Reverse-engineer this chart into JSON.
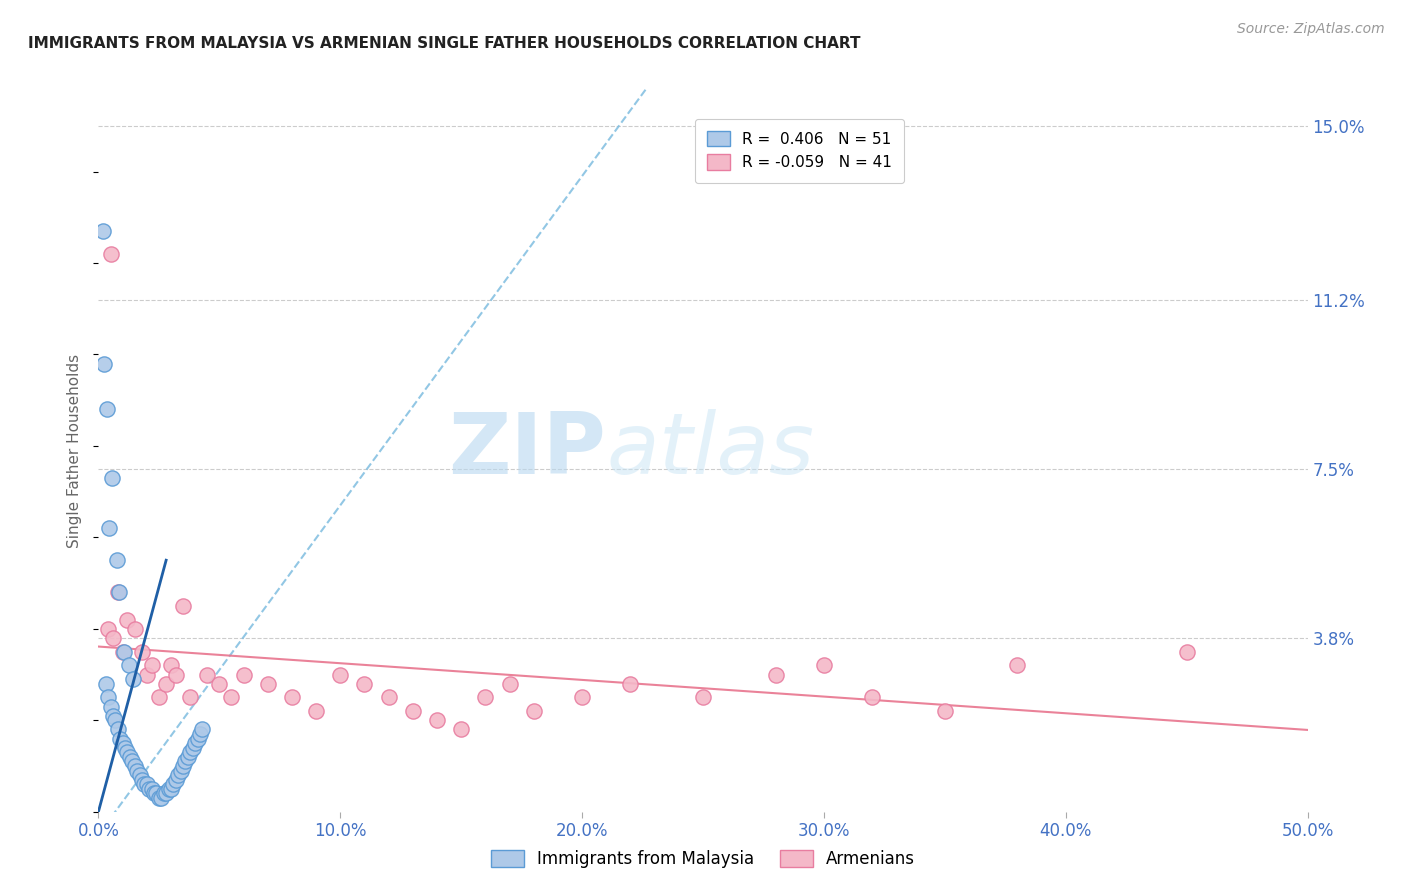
{
  "title": "IMMIGRANTS FROM MALAYSIA VS ARMENIAN SINGLE FATHER HOUSEHOLDS CORRELATION CHART",
  "source": "Source: ZipAtlas.com",
  "ylabel": "Single Father Households",
  "x_tick_labels": [
    "0.0%",
    "10.0%",
    "20.0%",
    "30.0%",
    "40.0%",
    "50.0%"
  ],
  "x_tick_values": [
    0.0,
    10.0,
    20.0,
    30.0,
    40.0,
    50.0
  ],
  "y_tick_labels": [
    "3.8%",
    "7.5%",
    "11.2%",
    "15.0%"
  ],
  "y_tick_values": [
    3.8,
    7.5,
    11.2,
    15.0
  ],
  "xlim": [
    0.0,
    50.0
  ],
  "ylim": [
    0.0,
    15.8
  ],
  "legend_label_blue": "Immigrants from Malaysia",
  "legend_label_pink": "Armenians",
  "R_blue": 0.406,
  "N_blue": 51,
  "R_pink": -0.059,
  "N_pink": 41,
  "blue_fill": "#aec9e8",
  "blue_edge": "#5b9bd5",
  "pink_fill": "#f4b8c8",
  "pink_edge": "#e87da0",
  "watermark_color": "#cde5f5",
  "title_color": "#222222",
  "axis_tick_color": "#4472c4",
  "ylabel_color": "#666666",
  "grid_color": "#cccccc",
  "blue_trend_color": "#7fbde0",
  "pink_trend_color": "#e8758e",
  "blue_line_color": "#1f5fa6",
  "blue_scatter_x": [
    0.3,
    0.4,
    0.5,
    0.6,
    0.7,
    0.8,
    0.9,
    1.0,
    1.1,
    1.2,
    1.3,
    1.4,
    1.5,
    1.6,
    1.7,
    1.8,
    1.9,
    2.0,
    2.1,
    2.2,
    2.3,
    2.4,
    2.5,
    2.6,
    2.7,
    2.8,
    2.9,
    3.0,
    3.1,
    3.2,
    3.3,
    3.4,
    3.5,
    3.6,
    3.7,
    3.8,
    3.9,
    4.0,
    4.1,
    4.2,
    4.3,
    0.2,
    0.35,
    0.55,
    0.75,
    0.85,
    1.05,
    1.25,
    1.45,
    0.25,
    0.45
  ],
  "blue_scatter_y": [
    2.8,
    2.5,
    2.3,
    2.1,
    2.0,
    1.8,
    1.6,
    1.5,
    1.4,
    1.3,
    1.2,
    1.1,
    1.0,
    0.9,
    0.8,
    0.7,
    0.6,
    0.6,
    0.5,
    0.5,
    0.4,
    0.4,
    0.3,
    0.3,
    0.4,
    0.4,
    0.5,
    0.5,
    0.6,
    0.7,
    0.8,
    0.9,
    1.0,
    1.1,
    1.2,
    1.3,
    1.4,
    1.5,
    1.6,
    1.7,
    1.8,
    12.7,
    8.8,
    7.3,
    5.5,
    4.8,
    3.5,
    3.2,
    2.9,
    9.8,
    6.2
  ],
  "pink_scatter_x": [
    0.4,
    0.6,
    0.8,
    1.0,
    1.2,
    1.5,
    1.8,
    2.0,
    2.2,
    2.5,
    2.8,
    3.0,
    3.2,
    3.5,
    3.8,
    4.5,
    5.0,
    5.5,
    6.0,
    7.0,
    8.0,
    9.0,
    10.0,
    11.0,
    12.0,
    13.0,
    14.0,
    15.0,
    16.0,
    17.0,
    18.0,
    20.0,
    22.0,
    25.0,
    28.0,
    30.0,
    32.0,
    35.0,
    38.0,
    45.0,
    0.5
  ],
  "pink_scatter_y": [
    4.0,
    3.8,
    4.8,
    3.5,
    4.2,
    4.0,
    3.5,
    3.0,
    3.2,
    2.5,
    2.8,
    3.2,
    3.0,
    4.5,
    2.5,
    3.0,
    2.8,
    2.5,
    3.0,
    2.8,
    2.5,
    2.2,
    3.0,
    2.8,
    2.5,
    2.2,
    2.0,
    1.8,
    2.5,
    2.8,
    2.2,
    2.5,
    2.8,
    2.5,
    3.0,
    3.2,
    2.5,
    2.2,
    3.2,
    3.5,
    12.2
  ],
  "blue_solid_line_x": [
    0.0,
    2.8
  ],
  "blue_solid_line_y": [
    0.0,
    5.5
  ]
}
